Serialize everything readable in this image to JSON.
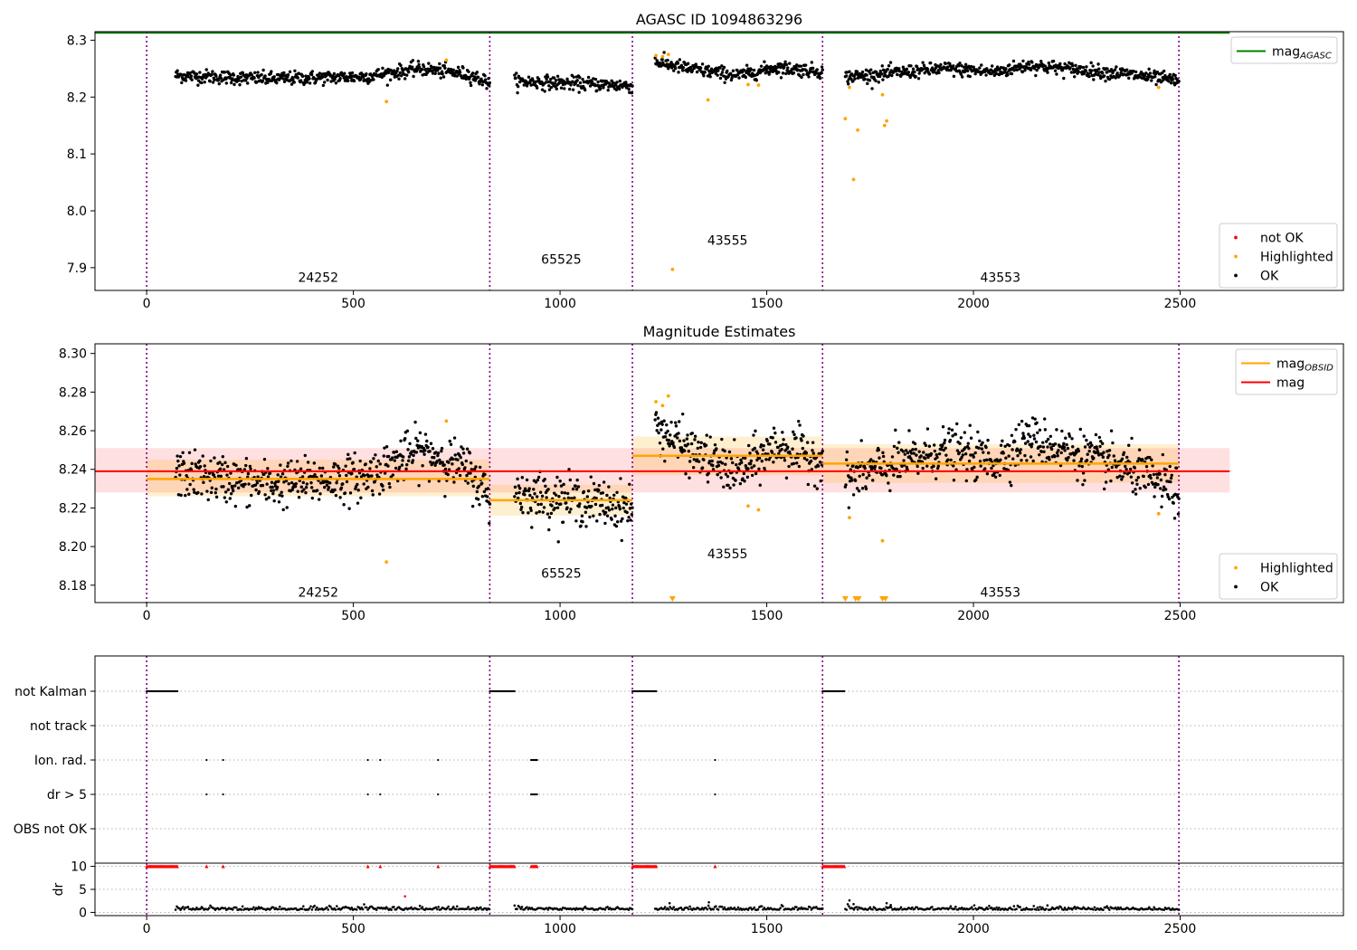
{
  "chart_data": [
    {
      "id": "top",
      "type": "scatter",
      "title": "AGASC ID 1094863296",
      "xlim": [
        -125,
        2895
      ],
      "ylim": [
        7.86,
        8.315
      ],
      "xticks": [
        0,
        500,
        1000,
        1500,
        2000,
        2500
      ],
      "yticks": [
        7.9,
        8.0,
        8.1,
        8.2,
        8.3
      ],
      "ytick_labels": [
        "7.9",
        "8.0",
        "8.1",
        "8.2",
        "8.3"
      ],
      "colors": {
        "ok": "#000000",
        "highlighted": "#ffa500",
        "not_ok": "#ff0000",
        "agasc": "#008000",
        "obs_line": "#800080"
      },
      "agasc_mag": 8.313,
      "agasc_x_range": [
        -125,
        2620
      ],
      "obs_boundaries": [
        0,
        830,
        1175,
        1635,
        2497
      ],
      "segment_labels": [
        {
          "text": "24252",
          "x": 415,
          "y": 7.875
        },
        {
          "text": "65525",
          "x": 1003,
          "y": 7.907
        },
        {
          "text": "43555",
          "x": 1405,
          "y": 7.94
        },
        {
          "text": "43553",
          "x": 2065,
          "y": 7.875
        }
      ],
      "ok_segments": [
        {
          "x0": 70,
          "x1": 830,
          "n": 520,
          "profile": [
            [
              0,
              8.238
            ],
            [
              0.3,
              8.232
            ],
            [
              0.6,
              8.236
            ],
            [
              0.78,
              8.25
            ],
            [
              0.93,
              8.24
            ],
            [
              1,
              8.225
            ]
          ],
          "sd": 0.006
        },
        {
          "x0": 890,
          "x1": 1175,
          "n": 200,
          "profile": [
            [
              0,
              8.228
            ],
            [
              0.5,
              8.224
            ],
            [
              1,
              8.22
            ]
          ],
          "sd": 0.006
        },
        {
          "x0": 1230,
          "x1": 1635,
          "n": 280,
          "profile": [
            [
              0,
              8.262
            ],
            [
              0.2,
              8.25
            ],
            [
              0.5,
              8.238
            ],
            [
              0.72,
              8.252
            ],
            [
              1,
              8.245
            ]
          ],
          "sd": 0.006
        },
        {
          "x0": 1690,
          "x1": 2497,
          "n": 560,
          "profile": [
            [
              0,
              8.235
            ],
            [
              0.3,
              8.25
            ],
            [
              0.45,
              8.244
            ],
            [
              0.55,
              8.256
            ],
            [
              0.85,
              8.24
            ],
            [
              1,
              8.228
            ]
          ],
          "sd": 0.006
        }
      ],
      "highlighted_points": [
        [
          580,
          8.192
        ],
        [
          725,
          8.265
        ],
        [
          1232,
          8.273
        ],
        [
          1248,
          8.271
        ],
        [
          1262,
          8.275
        ],
        [
          1272,
          7.897
        ],
        [
          1358,
          8.195
        ],
        [
          1455,
          8.222
        ],
        [
          1480,
          8.221
        ],
        [
          1690,
          8.162
        ],
        [
          1700,
          8.217
        ],
        [
          1710,
          8.055
        ],
        [
          1720,
          8.142
        ],
        [
          1780,
          8.204
        ],
        [
          1785,
          8.15
        ],
        [
          1790,
          8.158
        ],
        [
          2448,
          8.217
        ]
      ],
      "legends": [
        {
          "position": "upper right",
          "entries": [
            {
              "kind": "line",
              "color": "#008000",
              "label": "mag",
              "sub": "AGASC"
            }
          ]
        },
        {
          "position": "lower right",
          "entries": [
            {
              "kind": "dot",
              "color": "#ff0000",
              "label": "not OK"
            },
            {
              "kind": "dot",
              "color": "#ffa500",
              "label": "Highlighted"
            },
            {
              "kind": "dot",
              "color": "#000000",
              "label": "OK"
            }
          ]
        }
      ]
    },
    {
      "id": "middle",
      "type": "scatter",
      "title": "Magnitude Estimates",
      "xlim": [
        -125,
        2895
      ],
      "ylim": [
        8.171,
        8.305
      ],
      "xticks": [
        0,
        500,
        1000,
        1500,
        2000,
        2500
      ],
      "yticks": [
        8.18,
        8.2,
        8.22,
        8.24,
        8.26,
        8.28,
        8.3
      ],
      "ytick_labels": [
        "8.18",
        "8.20",
        "8.22",
        "8.24",
        "8.26",
        "8.28",
        "8.30"
      ],
      "colors": {
        "ok": "#000000",
        "highlighted": "#ffa500",
        "mag_obsid": "#ffa500",
        "mag": "#ff0000",
        "obs_line": "#800080"
      },
      "obs_boundaries": [
        0,
        830,
        1175,
        1635,
        2497
      ],
      "mag": {
        "value": 8.239,
        "lo": 8.228,
        "hi": 8.251,
        "x_range": [
          -125,
          2620
        ]
      },
      "mag_obsid": [
        {
          "x0": 0,
          "x1": 830,
          "value": 8.235,
          "lo": 8.226,
          "hi": 8.245
        },
        {
          "x0": 830,
          "x1": 1175,
          "value": 8.224,
          "lo": 8.216,
          "hi": 8.232
        },
        {
          "x0": 1175,
          "x1": 1635,
          "value": 8.247,
          "lo": 8.237,
          "hi": 8.257
        },
        {
          "x0": 1635,
          "x1": 2497,
          "value": 8.243,
          "lo": 8.233,
          "hi": 8.253
        }
      ],
      "segment_labels": [
        {
          "text": "24252",
          "x": 415,
          "y": 8.174
        },
        {
          "text": "65525",
          "x": 1003,
          "y": 8.184
        },
        {
          "text": "43555",
          "x": 1405,
          "y": 8.194
        },
        {
          "text": "43553",
          "x": 2065,
          "y": 8.174
        }
      ],
      "ok_segments": [
        {
          "x0": 70,
          "x1": 830,
          "n": 520,
          "profile": [
            [
              0,
              8.238
            ],
            [
              0.3,
              8.232
            ],
            [
              0.6,
              8.236
            ],
            [
              0.78,
              8.25
            ],
            [
              0.93,
              8.24
            ],
            [
              1,
              8.225
            ]
          ],
          "sd": 0.006
        },
        {
          "x0": 890,
          "x1": 1175,
          "n": 200,
          "profile": [
            [
              0,
              8.228
            ],
            [
              0.5,
              8.224
            ],
            [
              1,
              8.22
            ]
          ],
          "sd": 0.006
        },
        {
          "x0": 1230,
          "x1": 1635,
          "n": 280,
          "profile": [
            [
              0,
              8.262
            ],
            [
              0.2,
              8.25
            ],
            [
              0.5,
              8.238
            ],
            [
              0.72,
              8.252
            ],
            [
              1,
              8.245
            ]
          ],
          "sd": 0.006
        },
        {
          "x0": 1690,
          "x1": 2497,
          "n": 560,
          "profile": [
            [
              0,
              8.235
            ],
            [
              0.3,
              8.25
            ],
            [
              0.45,
              8.244
            ],
            [
              0.55,
              8.256
            ],
            [
              0.85,
              8.24
            ],
            [
              1,
              8.228
            ]
          ],
          "sd": 0.006
        }
      ],
      "highlighted_points": [
        [
          580,
          8.192
        ],
        [
          725,
          8.265
        ],
        [
          1232,
          8.275
        ],
        [
          1248,
          8.273
        ],
        [
          1262,
          8.278
        ],
        [
          1455,
          8.221
        ],
        [
          1480,
          8.219
        ],
        [
          1700,
          8.215
        ],
        [
          1780,
          8.203
        ],
        [
          2448,
          8.217
        ]
      ],
      "below_axis_markers": [
        1272,
        1690,
        1715,
        1722,
        1780,
        1787
      ],
      "legends": [
        {
          "position": "upper right",
          "entries": [
            {
              "kind": "line",
              "color": "#ffa500",
              "label": "mag",
              "sub": "OBSID"
            },
            {
              "kind": "line",
              "color": "#ff0000",
              "label": "mag"
            }
          ]
        },
        {
          "position": "lower right",
          "entries": [
            {
              "kind": "dot",
              "color": "#ffa500",
              "label": "Highlighted"
            },
            {
              "kind": "dot",
              "color": "#000000",
              "label": "OK"
            }
          ]
        }
      ]
    },
    {
      "id": "flags",
      "type": "scatter",
      "xlim": [
        -125,
        2895
      ],
      "categories": [
        "not Kalman",
        "not track",
        "Ion. rad.",
        "dr > 5",
        "OBS not OK"
      ],
      "obs_boundaries": [
        0,
        830,
        1175,
        1635,
        2497
      ],
      "flags": {
        "not Kalman": {
          "ranges": [
            [
              0,
              75
            ],
            [
              830,
              890
            ],
            [
              1175,
              1235
            ],
            [
              1635,
              1690
            ]
          ],
          "points": []
        },
        "not track": {
          "ranges": [],
          "points": []
        },
        "Ion. rad.": {
          "ranges": [
            [
              930,
              945
            ]
          ],
          "points": [
            145,
            185,
            535,
            565,
            705,
            1375
          ]
        },
        "dr > 5": {
          "ranges": [
            [
              930,
              945
            ]
          ],
          "points": [
            145,
            185,
            535,
            565,
            705,
            1375
          ]
        },
        "OBS not OK": {
          "ranges": [],
          "points": []
        }
      }
    },
    {
      "id": "dr",
      "type": "scatter",
      "ylabel": "dr",
      "xlim": [
        -125,
        2895
      ],
      "ylim": [
        -0.7,
        10.7
      ],
      "xticks": [
        0,
        500,
        1000,
        1500,
        2000,
        2500
      ],
      "yticks": [
        0,
        5,
        10
      ],
      "ytick_labels": [
        "0",
        "5",
        "10"
      ],
      "colors": {
        "ok": "#000000",
        "clipped": "#ff0000",
        "obs_line": "#800080"
      },
      "obs_boundaries": [
        0,
        830,
        1175,
        1635,
        2497
      ],
      "clipped_value": 10,
      "clipped_ranges": [
        [
          0,
          75
        ],
        [
          830,
          890
        ],
        [
          1175,
          1235
        ],
        [
          1635,
          1690
        ],
        [
          930,
          945
        ]
      ],
      "clipped_points": [
        145,
        185,
        535,
        565,
        705,
        1375
      ],
      "red_points": [
        [
          625,
          3.5
        ]
      ],
      "ok_ranges": [
        [
          70,
          830
        ],
        [
          890,
          1175
        ],
        [
          1230,
          1635
        ],
        [
          1690,
          2497
        ]
      ],
      "ok_level": 0.55,
      "ok_spread": 0.45,
      "black_outliers": [
        [
          1265,
          2.0
        ],
        [
          1360,
          2.2
        ],
        [
          1700,
          2.6
        ],
        [
          1710,
          1.8
        ],
        [
          1790,
          2.0
        ],
        [
          1800,
          1.6
        ]
      ]
    }
  ]
}
